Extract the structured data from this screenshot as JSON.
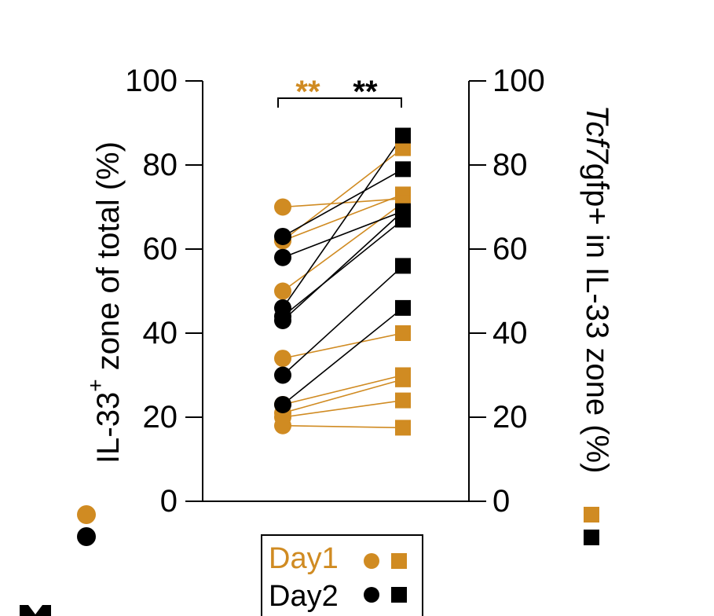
{
  "colors": {
    "day1": "#D08B22",
    "day2": "#000000"
  },
  "chart_data": {
    "type": "scatter",
    "subtype": "paired-dual-axis",
    "ylabel_left_prefix": "IL-33",
    "ylabel_left_sup": "+",
    "ylabel_left_suffix": " zone of total (%)",
    "ylabel_right_italic": "Tcf7",
    "ylabel_right_rest": "gfp+ in IL-33 zone (%)",
    "ylim": [
      0,
      100
    ],
    "left_ticks": [
      "0",
      "20",
      "40",
      "60",
      "80",
      "100"
    ],
    "right_ticks": [
      "0",
      "20",
      "40",
      "60",
      "80",
      "100"
    ],
    "significance": [
      {
        "text": "**",
        "color": "#D08B22"
      },
      {
        "text": "**",
        "color": "#000000"
      }
    ],
    "legend": [
      {
        "label": "Day1",
        "color": "#D08B22"
      },
      {
        "label": "Day2",
        "color": "#000000"
      }
    ],
    "series": [
      {
        "name": "Day1",
        "color": "#D08B22",
        "pairs": [
          [
            70,
            72
          ],
          [
            62,
            84
          ],
          [
            62,
            73
          ],
          [
            50,
            71
          ],
          [
            34,
            40
          ],
          [
            23,
            30
          ],
          [
            21,
            29
          ],
          [
            20,
            24
          ],
          [
            18,
            17.5
          ]
        ]
      },
      {
        "name": "Day2",
        "color": "#000000",
        "pairs": [
          [
            63,
            79
          ],
          [
            58,
            69
          ],
          [
            46,
            87
          ],
          [
            44,
            67
          ],
          [
            43,
            69
          ],
          [
            30,
            56
          ],
          [
            23,
            46
          ]
        ]
      }
    ]
  }
}
